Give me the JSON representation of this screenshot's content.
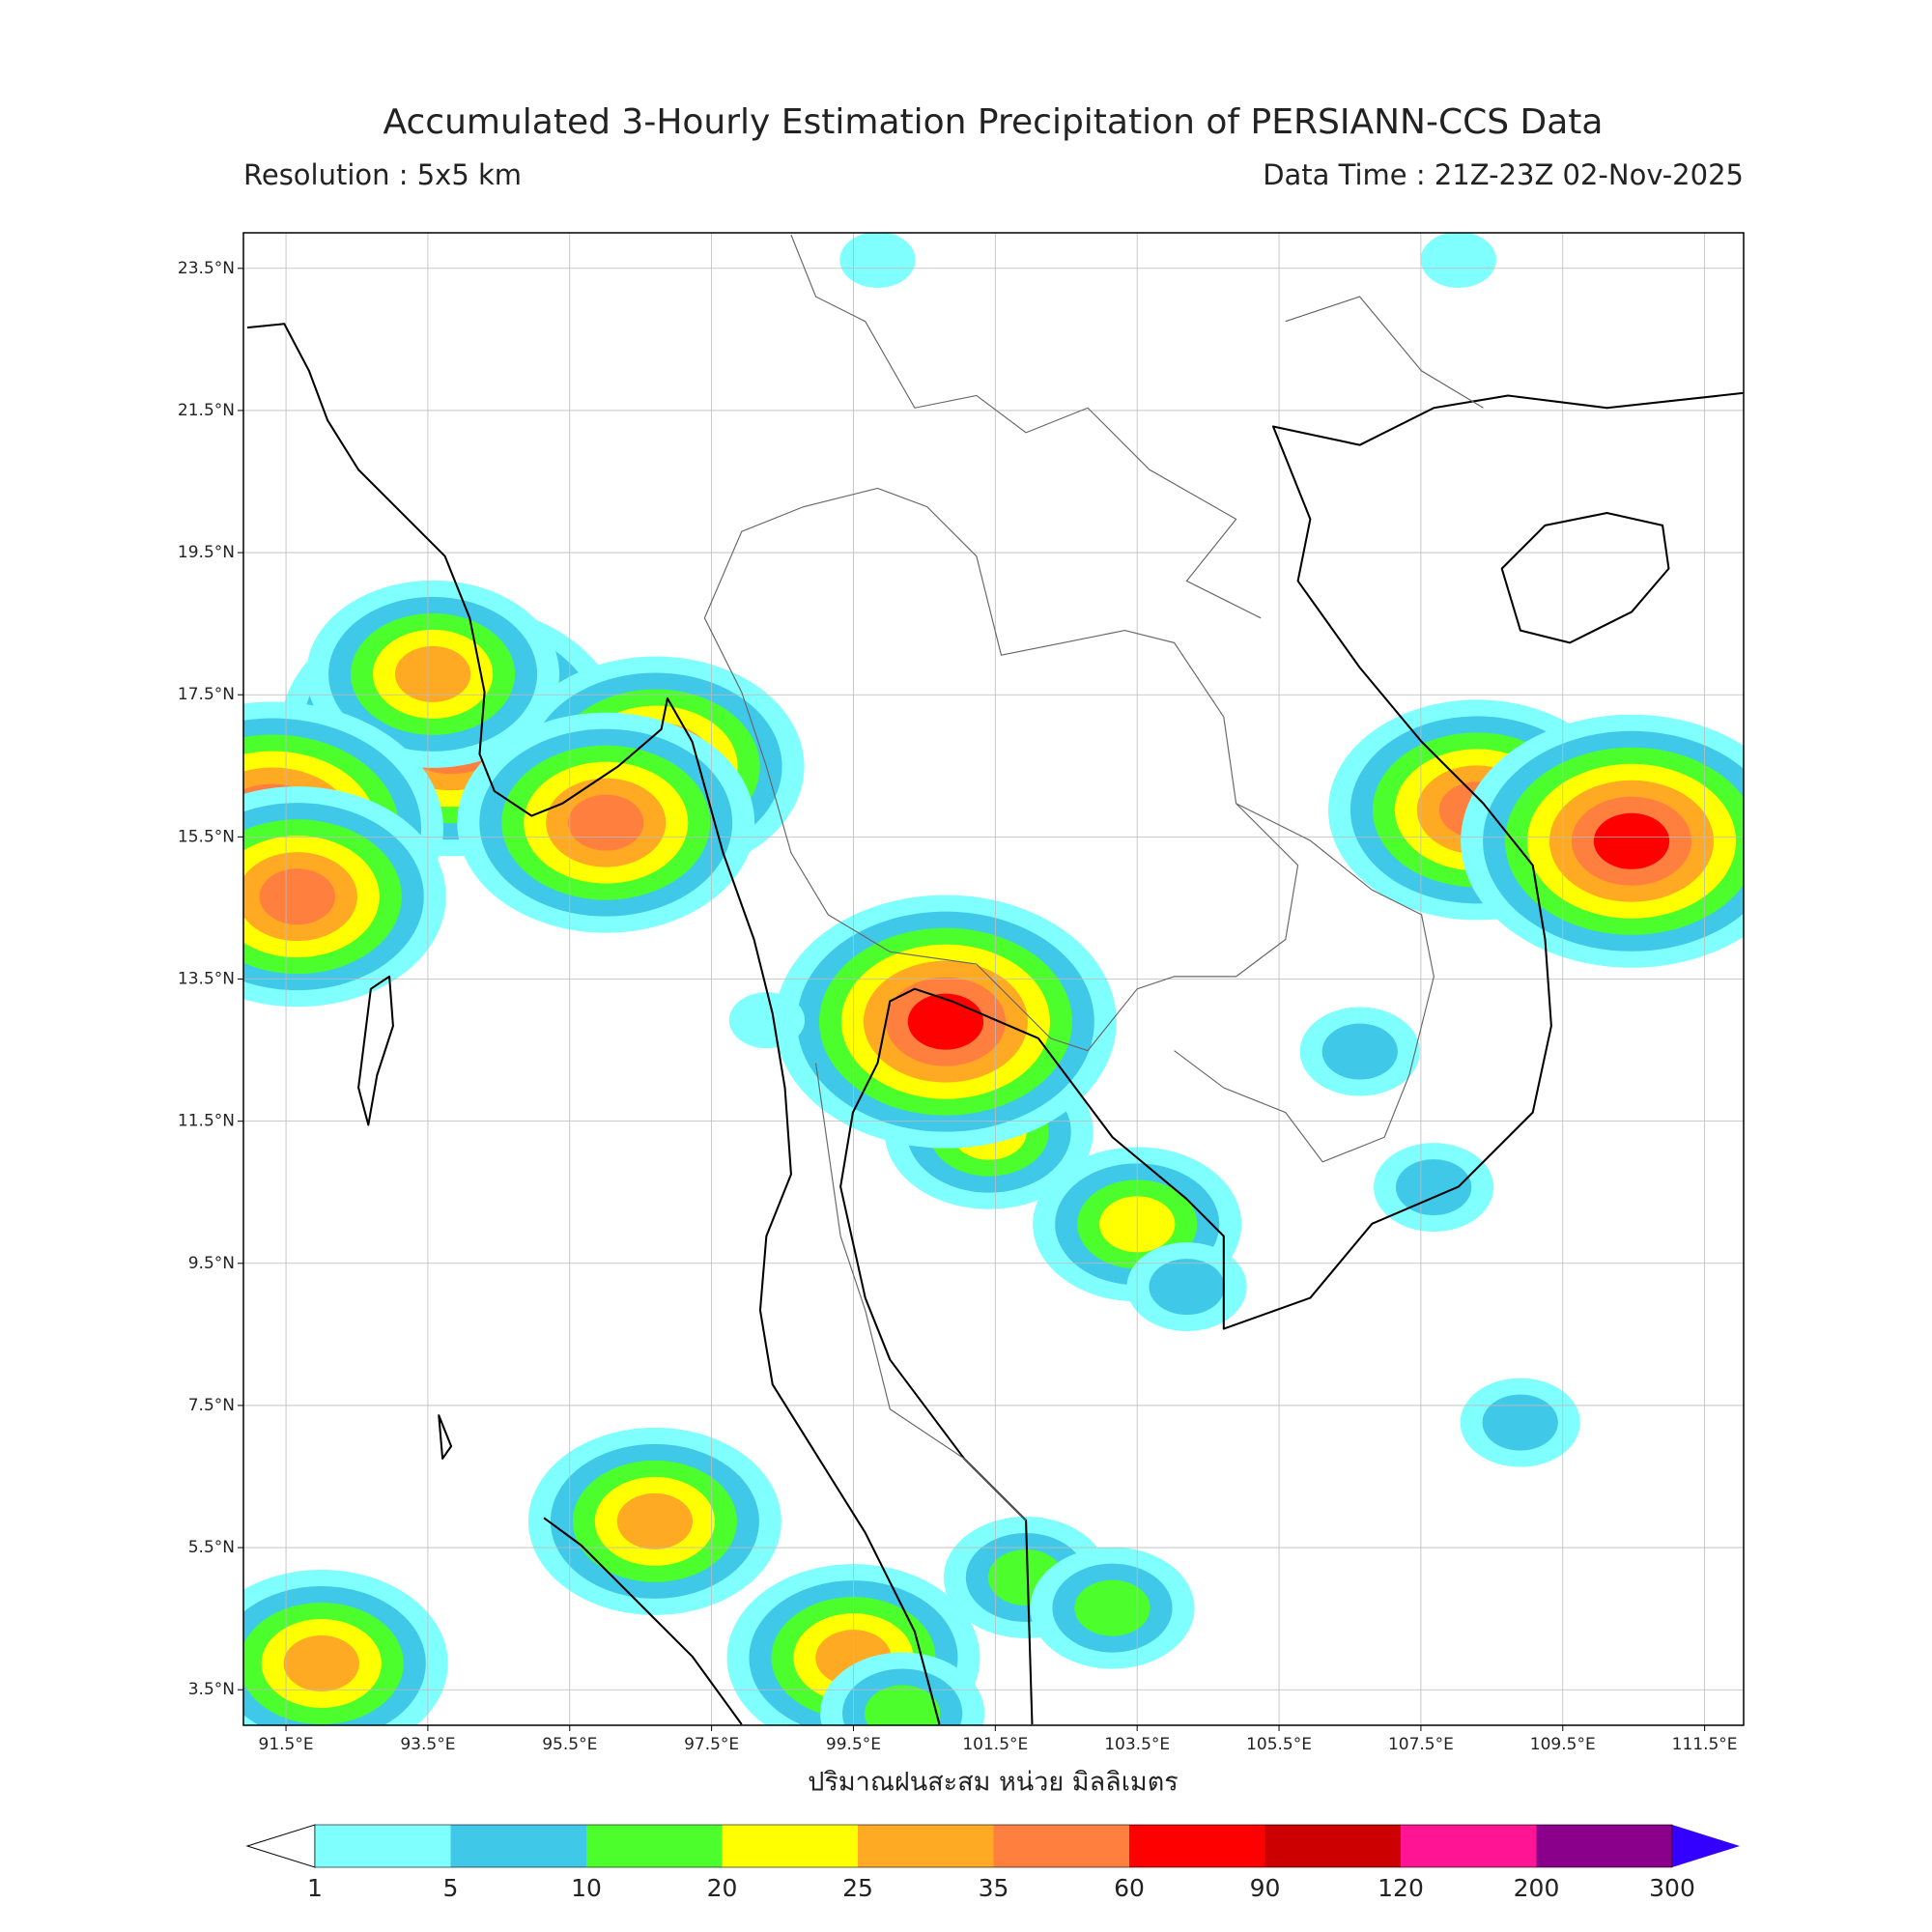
{
  "title": "Accumulated 3-Hourly Estimation Precipitation of PERSIANN-CCS Data",
  "resolution": "Resolution : 5x5 km",
  "data_time": "Data Time : 21Z-23Z 02-Nov-2025",
  "map": {
    "lonlim": [
      90.9,
      112.05
    ],
    "latlim": [
      3.0,
      24.0
    ],
    "lonticks": [
      {
        "value": 91.5,
        "label": "91.5°E"
      },
      {
        "value": 93.5,
        "label": "93.5°E"
      },
      {
        "value": 95.5,
        "label": "95.5°E"
      },
      {
        "value": 97.5,
        "label": "97.5°E"
      },
      {
        "value": 99.5,
        "label": "99.5°E"
      },
      {
        "value": 101.5,
        "label": "101.5°E"
      },
      {
        "value": 103.5,
        "label": "103.5°E"
      },
      {
        "value": 105.5,
        "label": "105.5°E"
      },
      {
        "value": 107.5,
        "label": "107.5°E"
      },
      {
        "value": 109.5,
        "label": "109.5°E"
      },
      {
        "value": 111.5,
        "label": "111.5°E"
      }
    ],
    "latticks": [
      {
        "value": 3.5,
        "label": "3.5°N"
      },
      {
        "value": 5.5,
        "label": "5.5°N"
      },
      {
        "value": 7.5,
        "label": "7.5°N"
      },
      {
        "value": 9.5,
        "label": "9.5°N"
      },
      {
        "value": 11.5,
        "label": "11.5°N"
      },
      {
        "value": 13.5,
        "label": "13.5°N"
      },
      {
        "value": 15.5,
        "label": "15.5°N"
      },
      {
        "value": 17.5,
        "label": "17.5°N"
      },
      {
        "value": 19.5,
        "label": "19.5°N"
      },
      {
        "value": 21.5,
        "label": "21.5°N"
      },
      {
        "value": 23.5,
        "label": "23.5°N"
      }
    ],
    "grid": true,
    "rain_cells": [
      {
        "lon": 93.83,
        "lat": 17.01,
        "mm": 90
      },
      {
        "lon": 93.57,
        "lat": 17.79,
        "mm": 35
      },
      {
        "lon": 96.71,
        "lat": 16.49,
        "mm": 60
      },
      {
        "lon": 96.01,
        "lat": 15.7,
        "mm": 60
      },
      {
        "lon": 91.31,
        "lat": 15.62,
        "mm": 90
      },
      {
        "lon": 91.66,
        "lat": 14.66,
        "mm": 60
      },
      {
        "lon": 108.29,
        "lat": 15.88,
        "mm": 60
      },
      {
        "lon": 110.47,
        "lat": 15.44,
        "mm": 90
      },
      {
        "lon": 101.41,
        "lat": 11.35,
        "mm": 25
      },
      {
        "lon": 100.8,
        "lat": 12.9,
        "mm": 90
      },
      {
        "lon": 103.5,
        "lat": 10.05,
        "mm": 25
      },
      {
        "lon": 96.7,
        "lat": 5.87,
        "mm": 35
      },
      {
        "lon": 99.5,
        "lat": 3.95,
        "mm": 35
      },
      {
        "lon": 100.19,
        "lat": 3.17,
        "mm": 20
      },
      {
        "lon": 101.93,
        "lat": 5.08,
        "mm": 20
      },
      {
        "lon": 103.15,
        "lat": 4.65,
        "mm": 20
      },
      {
        "lon": 92.0,
        "lat": 3.87,
        "mm": 35
      },
      {
        "lon": 104.2,
        "lat": 9.17,
        "mm": 10
      },
      {
        "lon": 106.64,
        "lat": 12.48,
        "mm": 10
      },
      {
        "lon": 108.9,
        "lat": 7.26,
        "mm": 10
      },
      {
        "lon": 108.03,
        "lat": 23.62,
        "mm": 5
      },
      {
        "lon": 99.84,
        "lat": 23.62,
        "mm": 5
      },
      {
        "lon": 98.28,
        "lat": 12.92,
        "mm": 5
      },
      {
        "lon": 107.68,
        "lat": 10.57,
        "mm": 10
      }
    ]
  },
  "colorbar": {
    "label": "ปริมาณฝนสะสม หน่วย มิลลิเมตร",
    "levels": [
      1,
      5,
      10,
      20,
      25,
      35,
      60,
      90,
      120,
      200,
      300
    ],
    "colors": [
      "#80ffff",
      "#40c8e8",
      "#4cff2c",
      "#ffff00",
      "#ffaa22",
      "#ff7f3f",
      "#ff0000",
      "#cc0000",
      "#ff1493",
      "#8b008b"
    ],
    "under_color": "#ffffff",
    "over_color": "#3300ff"
  }
}
